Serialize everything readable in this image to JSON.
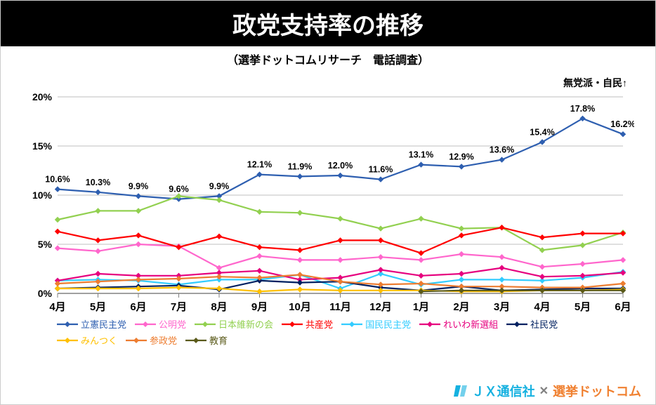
{
  "title": "政党支持率の推移",
  "subtitle": "（選挙ドットコムリサーチ　電話調査）",
  "annotation_top_right": "無党派・自民↑",
  "chart": {
    "type": "line",
    "ylim": [
      0,
      20
    ],
    "ytick_step": 5,
    "ytick_suffix": "%",
    "x_categories": [
      "4月",
      "5月",
      "6月",
      "7月",
      "8月",
      "9月",
      "10月",
      "11月",
      "12月",
      "1月",
      "2月",
      "3月",
      "4月",
      "5月",
      "6月"
    ],
    "background_color": "#ffffff",
    "grid_color": "#bfbfbf",
    "axis_color": "#808080",
    "label_fontsize": 14,
    "x_fontsize": 15,
    "data_label_fontsize": 12.5,
    "series": [
      {
        "name": "立憲民主党",
        "color": "#2e5fb0",
        "marker": "diamond",
        "values": [
          10.6,
          10.3,
          9.9,
          9.6,
          9.9,
          12.1,
          11.9,
          12.0,
          11.6,
          13.1,
          12.9,
          13.6,
          15.4,
          17.8,
          16.2
        ],
        "show_labels": true
      },
      {
        "name": "公明党",
        "color": "#ff66cc",
        "marker": "diamond",
        "values": [
          4.6,
          4.3,
          5.0,
          4.8,
          2.6,
          3.8,
          3.4,
          3.4,
          3.7,
          3.4,
          4.0,
          3.7,
          2.7,
          3.0,
          3.4
        ]
      },
      {
        "name": "日本維新の会",
        "color": "#92d050",
        "marker": "diamond",
        "values": [
          7.5,
          8.4,
          8.4,
          9.9,
          9.5,
          8.3,
          8.2,
          7.6,
          6.6,
          7.6,
          6.6,
          6.7,
          4.4,
          4.9,
          6.2
        ]
      },
      {
        "name": "共産党",
        "color": "#ff0000",
        "marker": "diamond",
        "values": [
          6.3,
          5.4,
          5.9,
          4.7,
          5.8,
          4.7,
          4.4,
          5.4,
          5.4,
          4.1,
          5.9,
          6.7,
          5.7,
          6.1,
          6.1
        ]
      },
      {
        "name": "国民民主党",
        "color": "#33ccff",
        "marker": "diamond",
        "values": [
          1.3,
          1.4,
          1.3,
          0.9,
          1.4,
          1.4,
          1.9,
          0.5,
          2.0,
          0.9,
          1.4,
          1.4,
          1.3,
          1.6,
          2.2
        ]
      },
      {
        "name": "れいわ新選組",
        "color": "#e6007e",
        "marker": "diamond",
        "values": [
          1.3,
          2.0,
          1.8,
          1.8,
          2.1,
          2.3,
          1.4,
          1.6,
          2.4,
          1.8,
          2.0,
          2.6,
          1.7,
          1.8,
          2.1
        ]
      },
      {
        "name": "社民党",
        "color": "#002060",
        "marker": "diamond",
        "values": [
          0.5,
          0.6,
          0.7,
          0.8,
          0.4,
          1.3,
          1.1,
          1.2,
          0.6,
          0.3,
          0.7,
          0.3,
          0.4,
          0.5,
          0.5
        ]
      },
      {
        "name": "みんつく",
        "color": "#ffc000",
        "marker": "diamond",
        "values": [
          0.5,
          0.5,
          0.5,
          0.6,
          0.5,
          0.2,
          0.4,
          0.3,
          0.3,
          0.3,
          0.2,
          0.2,
          0.3,
          0.3,
          0.4
        ]
      },
      {
        "name": "参政党",
        "color": "#ed7d31",
        "marker": "diamond",
        "values": [
          1.0,
          1.2,
          1.4,
          1.5,
          1.7,
          1.6,
          1.9,
          1.2,
          0.9,
          1.0,
          0.7,
          0.7,
          0.6,
          0.6,
          1.0
        ]
      },
      {
        "name": "教育",
        "color": "#5a5a1a",
        "marker": "diamond",
        "values": [
          null,
          null,
          null,
          null,
          null,
          null,
          null,
          null,
          null,
          0.2,
          0.3,
          0.3,
          0.3,
          0.3,
          0.3
        ]
      }
    ]
  },
  "footer": {
    "jx": "ＪＸ通信社",
    "x": "✕",
    "senkyo": "選挙ドットコム"
  }
}
